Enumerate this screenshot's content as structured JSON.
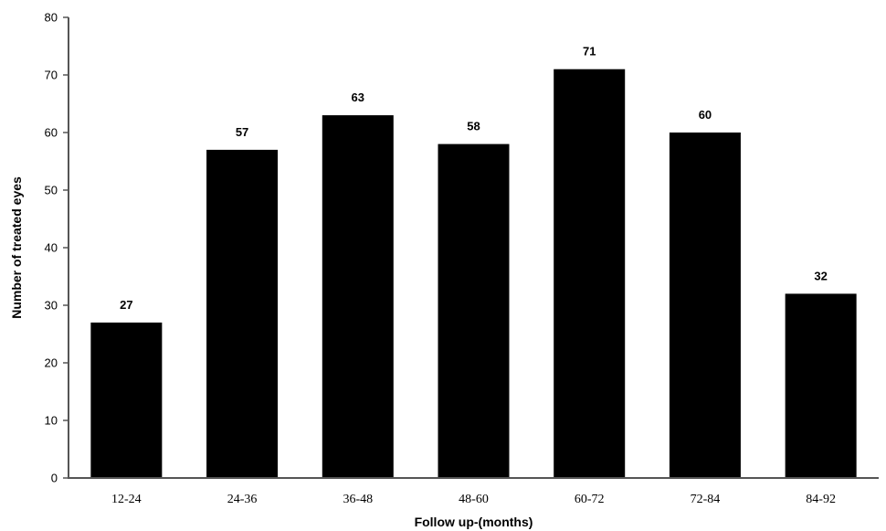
{
  "chart_data": {
    "type": "bar",
    "categories": [
      "12-24",
      "24-36",
      "36-48",
      "48-60",
      "60-72",
      "72-84",
      "84-92"
    ],
    "values": [
      27,
      57,
      63,
      58,
      71,
      60,
      32
    ],
    "data_labels": [
      "27",
      "57",
      "63",
      "58",
      "71",
      "60",
      "32"
    ],
    "title": "",
    "xlabel": "Follow up-(months)",
    "ylabel": "Number of treated  eyes",
    "ylim": [
      0,
      80
    ],
    "yticks": [
      0,
      10,
      20,
      30,
      40,
      50,
      60,
      70,
      80
    ],
    "ytick_labels": [
      "0",
      "10",
      "20",
      "30",
      "40",
      "50",
      "60",
      "70",
      "80"
    ],
    "grid": false,
    "legend": "none",
    "bar_color": "#000000",
    "axis_color": "#555555"
  }
}
